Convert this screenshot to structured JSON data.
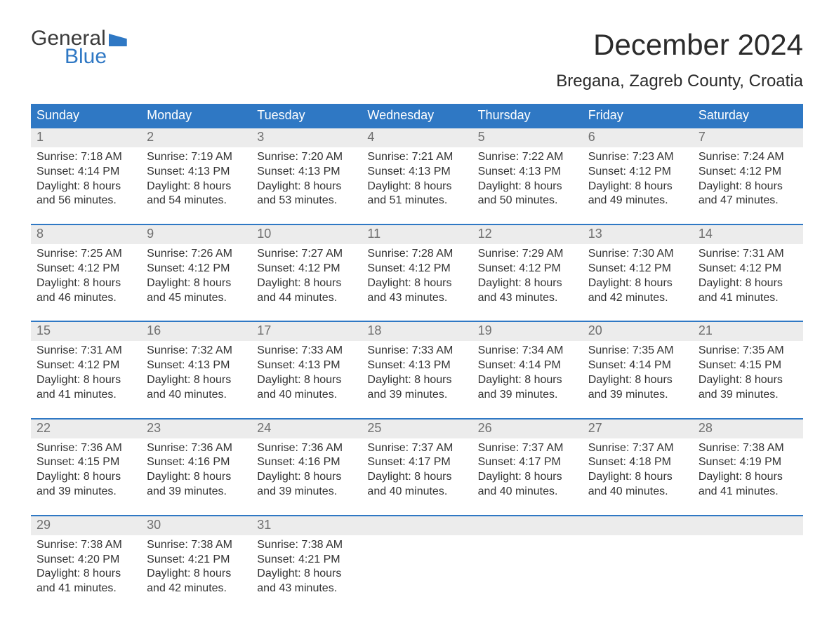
{
  "logo": {
    "top": "General",
    "bottom": "Blue"
  },
  "title": "December 2024",
  "subtitle": "Bregana, Zagreb County, Croatia",
  "colors": {
    "header_bg": "#2f78c4",
    "header_text": "#ffffff",
    "daynum_bg": "#ececec",
    "daynum_text": "#6f6f6f",
    "body_text": "#333333",
    "rule": "#2f78c4",
    "logo_text": "#3a3a3a",
    "logo_blue": "#2f78c4",
    "page_bg": "#ffffff"
  },
  "dow": [
    "Sunday",
    "Monday",
    "Tuesday",
    "Wednesday",
    "Thursday",
    "Friday",
    "Saturday"
  ],
  "weeks": [
    [
      {
        "n": "1",
        "sunrise": "Sunrise: 7:18 AM",
        "sunset": "Sunset: 4:14 PM",
        "d1": "Daylight: 8 hours",
        "d2": "and 56 minutes."
      },
      {
        "n": "2",
        "sunrise": "Sunrise: 7:19 AM",
        "sunset": "Sunset: 4:13 PM",
        "d1": "Daylight: 8 hours",
        "d2": "and 54 minutes."
      },
      {
        "n": "3",
        "sunrise": "Sunrise: 7:20 AM",
        "sunset": "Sunset: 4:13 PM",
        "d1": "Daylight: 8 hours",
        "d2": "and 53 minutes."
      },
      {
        "n": "4",
        "sunrise": "Sunrise: 7:21 AM",
        "sunset": "Sunset: 4:13 PM",
        "d1": "Daylight: 8 hours",
        "d2": "and 51 minutes."
      },
      {
        "n": "5",
        "sunrise": "Sunrise: 7:22 AM",
        "sunset": "Sunset: 4:13 PM",
        "d1": "Daylight: 8 hours",
        "d2": "and 50 minutes."
      },
      {
        "n": "6",
        "sunrise": "Sunrise: 7:23 AM",
        "sunset": "Sunset: 4:12 PM",
        "d1": "Daylight: 8 hours",
        "d2": "and 49 minutes."
      },
      {
        "n": "7",
        "sunrise": "Sunrise: 7:24 AM",
        "sunset": "Sunset: 4:12 PM",
        "d1": "Daylight: 8 hours",
        "d2": "and 47 minutes."
      }
    ],
    [
      {
        "n": "8",
        "sunrise": "Sunrise: 7:25 AM",
        "sunset": "Sunset: 4:12 PM",
        "d1": "Daylight: 8 hours",
        "d2": "and 46 minutes."
      },
      {
        "n": "9",
        "sunrise": "Sunrise: 7:26 AM",
        "sunset": "Sunset: 4:12 PM",
        "d1": "Daylight: 8 hours",
        "d2": "and 45 minutes."
      },
      {
        "n": "10",
        "sunrise": "Sunrise: 7:27 AM",
        "sunset": "Sunset: 4:12 PM",
        "d1": "Daylight: 8 hours",
        "d2": "and 44 minutes."
      },
      {
        "n": "11",
        "sunrise": "Sunrise: 7:28 AM",
        "sunset": "Sunset: 4:12 PM",
        "d1": "Daylight: 8 hours",
        "d2": "and 43 minutes."
      },
      {
        "n": "12",
        "sunrise": "Sunrise: 7:29 AM",
        "sunset": "Sunset: 4:12 PM",
        "d1": "Daylight: 8 hours",
        "d2": "and 43 minutes."
      },
      {
        "n": "13",
        "sunrise": "Sunrise: 7:30 AM",
        "sunset": "Sunset: 4:12 PM",
        "d1": "Daylight: 8 hours",
        "d2": "and 42 minutes."
      },
      {
        "n": "14",
        "sunrise": "Sunrise: 7:31 AM",
        "sunset": "Sunset: 4:12 PM",
        "d1": "Daylight: 8 hours",
        "d2": "and 41 minutes."
      }
    ],
    [
      {
        "n": "15",
        "sunrise": "Sunrise: 7:31 AM",
        "sunset": "Sunset: 4:12 PM",
        "d1": "Daylight: 8 hours",
        "d2": "and 41 minutes."
      },
      {
        "n": "16",
        "sunrise": "Sunrise: 7:32 AM",
        "sunset": "Sunset: 4:13 PM",
        "d1": "Daylight: 8 hours",
        "d2": "and 40 minutes."
      },
      {
        "n": "17",
        "sunrise": "Sunrise: 7:33 AM",
        "sunset": "Sunset: 4:13 PM",
        "d1": "Daylight: 8 hours",
        "d2": "and 40 minutes."
      },
      {
        "n": "18",
        "sunrise": "Sunrise: 7:33 AM",
        "sunset": "Sunset: 4:13 PM",
        "d1": "Daylight: 8 hours",
        "d2": "and 39 minutes."
      },
      {
        "n": "19",
        "sunrise": "Sunrise: 7:34 AM",
        "sunset": "Sunset: 4:14 PM",
        "d1": "Daylight: 8 hours",
        "d2": "and 39 minutes."
      },
      {
        "n": "20",
        "sunrise": "Sunrise: 7:35 AM",
        "sunset": "Sunset: 4:14 PM",
        "d1": "Daylight: 8 hours",
        "d2": "and 39 minutes."
      },
      {
        "n": "21",
        "sunrise": "Sunrise: 7:35 AM",
        "sunset": "Sunset: 4:15 PM",
        "d1": "Daylight: 8 hours",
        "d2": "and 39 minutes."
      }
    ],
    [
      {
        "n": "22",
        "sunrise": "Sunrise: 7:36 AM",
        "sunset": "Sunset: 4:15 PM",
        "d1": "Daylight: 8 hours",
        "d2": "and 39 minutes."
      },
      {
        "n": "23",
        "sunrise": "Sunrise: 7:36 AM",
        "sunset": "Sunset: 4:16 PM",
        "d1": "Daylight: 8 hours",
        "d2": "and 39 minutes."
      },
      {
        "n": "24",
        "sunrise": "Sunrise: 7:36 AM",
        "sunset": "Sunset: 4:16 PM",
        "d1": "Daylight: 8 hours",
        "d2": "and 39 minutes."
      },
      {
        "n": "25",
        "sunrise": "Sunrise: 7:37 AM",
        "sunset": "Sunset: 4:17 PM",
        "d1": "Daylight: 8 hours",
        "d2": "and 40 minutes."
      },
      {
        "n": "26",
        "sunrise": "Sunrise: 7:37 AM",
        "sunset": "Sunset: 4:17 PM",
        "d1": "Daylight: 8 hours",
        "d2": "and 40 minutes."
      },
      {
        "n": "27",
        "sunrise": "Sunrise: 7:37 AM",
        "sunset": "Sunset: 4:18 PM",
        "d1": "Daylight: 8 hours",
        "d2": "and 40 minutes."
      },
      {
        "n": "28",
        "sunrise": "Sunrise: 7:38 AM",
        "sunset": "Sunset: 4:19 PM",
        "d1": "Daylight: 8 hours",
        "d2": "and 41 minutes."
      }
    ],
    [
      {
        "n": "29",
        "sunrise": "Sunrise: 7:38 AM",
        "sunset": "Sunset: 4:20 PM",
        "d1": "Daylight: 8 hours",
        "d2": "and 41 minutes."
      },
      {
        "n": "30",
        "sunrise": "Sunrise: 7:38 AM",
        "sunset": "Sunset: 4:21 PM",
        "d1": "Daylight: 8 hours",
        "d2": "and 42 minutes."
      },
      {
        "n": "31",
        "sunrise": "Sunrise: 7:38 AM",
        "sunset": "Sunset: 4:21 PM",
        "d1": "Daylight: 8 hours",
        "d2": "and 43 minutes."
      },
      {
        "n": "",
        "sunrise": "",
        "sunset": "",
        "d1": "",
        "d2": ""
      },
      {
        "n": "",
        "sunrise": "",
        "sunset": "",
        "d1": "",
        "d2": ""
      },
      {
        "n": "",
        "sunrise": "",
        "sunset": "",
        "d1": "",
        "d2": ""
      },
      {
        "n": "",
        "sunrise": "",
        "sunset": "",
        "d1": "",
        "d2": ""
      }
    ]
  ]
}
